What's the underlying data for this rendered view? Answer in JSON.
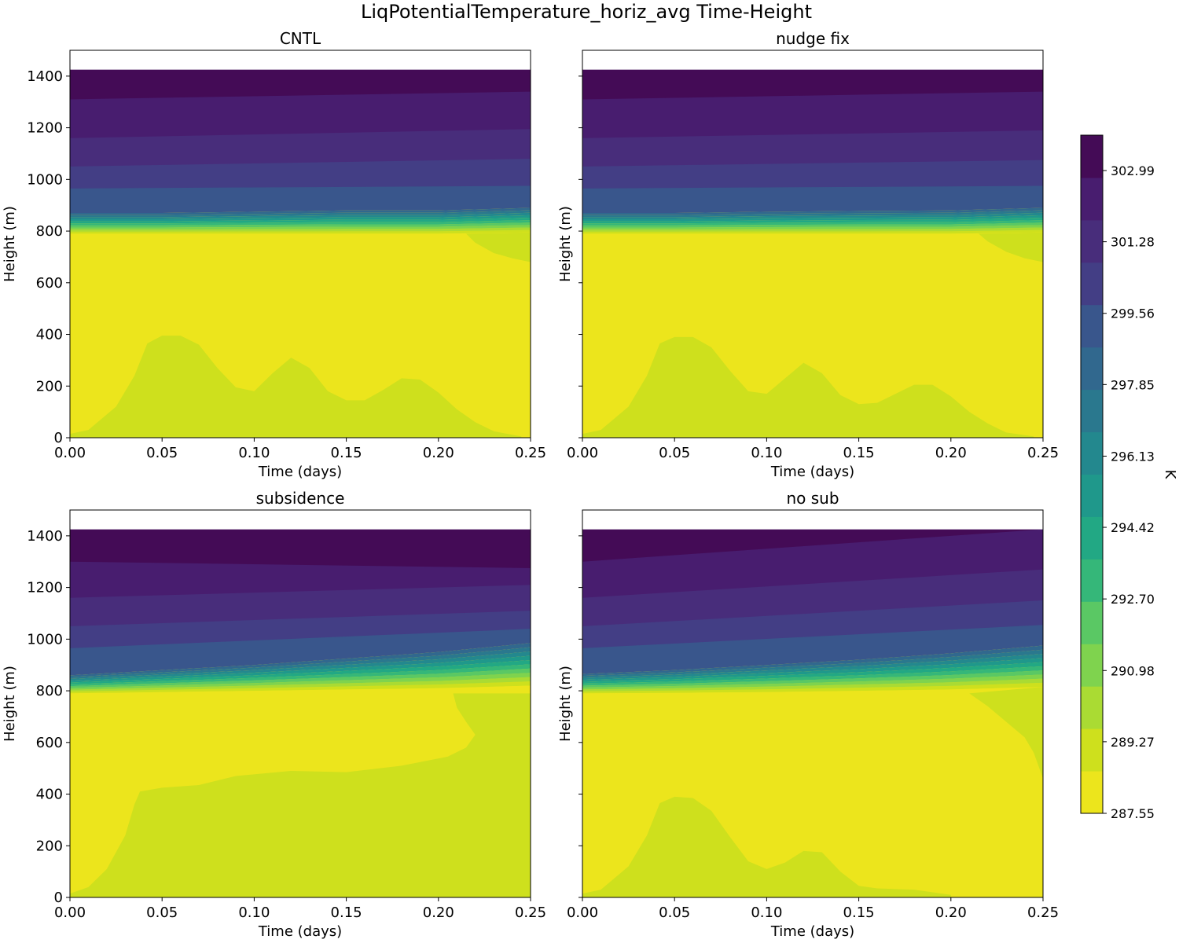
{
  "figure": {
    "suptitle": "LiqPotentialTemperature_horiz_avg Time-Height"
  },
  "chart_data": [
    {
      "type": "contourf",
      "title": "CNTL",
      "xlabel": "Time (days)",
      "ylabel": "Height (m)",
      "xlim": [
        0,
        0.25
      ],
      "ylim": [
        0,
        1500
      ],
      "xticks": [
        "0.00",
        "0.05",
        "0.10",
        "0.15",
        "0.20",
        "0.25"
      ],
      "yticks": [
        "0",
        "200",
        "400",
        "600",
        "800",
        "1000",
        "1200",
        "1400"
      ],
      "show_ytick_labels": true,
      "data_top_height_m": 1425,
      "inversion": {
        "base_m": [
          790,
          790,
          790,
          790,
          790,
          795
        ],
        "top_m": [
          870,
          870,
          875,
          880,
          880,
          890
        ]
      },
      "upper_band_heights_m": [
        [
          965,
          975
        ],
        [
          1050,
          1080
        ],
        [
          1160,
          1195
        ],
        [
          1310,
          1340
        ]
      ],
      "mixed_layer_top_m": [
        {
          "t": 0.0,
          "z": 15
        },
        {
          "t": 0.01,
          "z": 30
        },
        {
          "t": 0.025,
          "z": 120
        },
        {
          "t": 0.035,
          "z": 240
        },
        {
          "t": 0.042,
          "z": 365
        },
        {
          "t": 0.05,
          "z": 395
        },
        {
          "t": 0.06,
          "z": 395
        },
        {
          "t": 0.07,
          "z": 360
        },
        {
          "t": 0.08,
          "z": 270
        },
        {
          "t": 0.09,
          "z": 195
        },
        {
          "t": 0.1,
          "z": 180
        },
        {
          "t": 0.11,
          "z": 250
        },
        {
          "t": 0.12,
          "z": 310
        },
        {
          "t": 0.13,
          "z": 270
        },
        {
          "t": 0.14,
          "z": 180
        },
        {
          "t": 0.15,
          "z": 145
        },
        {
          "t": 0.16,
          "z": 145
        },
        {
          "t": 0.17,
          "z": 185
        },
        {
          "t": 0.18,
          "z": 230
        },
        {
          "t": 0.19,
          "z": 225
        },
        {
          "t": 0.2,
          "z": 175
        },
        {
          "t": 0.21,
          "z": 110
        },
        {
          "t": 0.22,
          "z": 60
        },
        {
          "t": 0.23,
          "z": 25
        },
        {
          "t": 0.245,
          "z": 5
        }
      ],
      "upper_cool_region_m": [
        {
          "t": 0.215,
          "z": 790
        },
        {
          "t": 0.22,
          "z": 755
        },
        {
          "t": 0.23,
          "z": 715
        },
        {
          "t": 0.24,
          "z": 695
        },
        {
          "t": 0.25,
          "z": 680
        }
      ]
    },
    {
      "type": "contourf",
      "title": "nudge fix",
      "xlabel": "Time (days)",
      "ylabel": "Height (m)",
      "xlim": [
        0,
        0.25
      ],
      "ylim": [
        0,
        1500
      ],
      "xticks": [
        "0.00",
        "0.05",
        "0.10",
        "0.15",
        "0.20",
        "0.25"
      ],
      "yticks": [
        "0",
        "200",
        "400",
        "600",
        "800",
        "1000",
        "1200",
        "1400"
      ],
      "show_ytick_labels": false,
      "data_top_height_m": 1425,
      "inversion": {
        "base_m": [
          790,
          790,
          790,
          790,
          790,
          795
        ],
        "top_m": [
          870,
          870,
          875,
          878,
          880,
          890
        ]
      },
      "upper_band_heights_m": [
        [
          965,
          975
        ],
        [
          1050,
          1075
        ],
        [
          1160,
          1190
        ],
        [
          1310,
          1340
        ]
      ],
      "mixed_layer_top_m": [
        {
          "t": 0.0,
          "z": 15
        },
        {
          "t": 0.01,
          "z": 30
        },
        {
          "t": 0.025,
          "z": 120
        },
        {
          "t": 0.035,
          "z": 240
        },
        {
          "t": 0.042,
          "z": 365
        },
        {
          "t": 0.05,
          "z": 390
        },
        {
          "t": 0.06,
          "z": 390
        },
        {
          "t": 0.07,
          "z": 350
        },
        {
          "t": 0.08,
          "z": 260
        },
        {
          "t": 0.09,
          "z": 180
        },
        {
          "t": 0.1,
          "z": 170
        },
        {
          "t": 0.11,
          "z": 230
        },
        {
          "t": 0.12,
          "z": 290
        },
        {
          "t": 0.13,
          "z": 250
        },
        {
          "t": 0.14,
          "z": 165
        },
        {
          "t": 0.15,
          "z": 130
        },
        {
          "t": 0.16,
          "z": 135
        },
        {
          "t": 0.17,
          "z": 170
        },
        {
          "t": 0.18,
          "z": 205
        },
        {
          "t": 0.19,
          "z": 205
        },
        {
          "t": 0.2,
          "z": 160
        },
        {
          "t": 0.21,
          "z": 100
        },
        {
          "t": 0.22,
          "z": 55
        },
        {
          "t": 0.23,
          "z": 20
        },
        {
          "t": 0.245,
          "z": 5
        }
      ],
      "upper_cool_region_m": [
        {
          "t": 0.215,
          "z": 790
        },
        {
          "t": 0.22,
          "z": 760
        },
        {
          "t": 0.23,
          "z": 720
        },
        {
          "t": 0.24,
          "z": 695
        },
        {
          "t": 0.25,
          "z": 680
        }
      ]
    },
    {
      "type": "contourf",
      "title": "subsidence",
      "xlabel": "Time (days)",
      "ylabel": "Height (m)",
      "xlim": [
        0,
        0.25
      ],
      "ylim": [
        0,
        1500
      ],
      "xticks": [
        "0.00",
        "0.05",
        "0.10",
        "0.15",
        "0.20",
        "0.25"
      ],
      "yticks": [
        "0",
        "200",
        "400",
        "600",
        "800",
        "1000",
        "1200",
        "1400"
      ],
      "show_ytick_labels": true,
      "data_top_height_m": 1425,
      "inversion": {
        "base_m": [
          790,
          795,
          800,
          805,
          810,
          820
        ],
        "top_m": [
          860,
          880,
          900,
          925,
          950,
          985
        ]
      },
      "upper_band_heights_m": [
        [
          965,
          1040
        ],
        [
          1050,
          1110
        ],
        [
          1160,
          1210
        ],
        [
          1300,
          1275
        ]
      ],
      "mixed_layer_top_m": [
        {
          "t": 0.0,
          "z": 15
        },
        {
          "t": 0.01,
          "z": 40
        },
        {
          "t": 0.02,
          "z": 110
        },
        {
          "t": 0.03,
          "z": 240
        },
        {
          "t": 0.035,
          "z": 360
        },
        {
          "t": 0.038,
          "z": 410
        },
        {
          "t": 0.05,
          "z": 425
        },
        {
          "t": 0.07,
          "z": 435
        },
        {
          "t": 0.09,
          "z": 470
        },
        {
          "t": 0.12,
          "z": 490
        },
        {
          "t": 0.15,
          "z": 485
        },
        {
          "t": 0.18,
          "z": 510
        },
        {
          "t": 0.205,
          "z": 545
        },
        {
          "t": 0.215,
          "z": 580
        },
        {
          "t": 0.22,
          "z": 630
        },
        {
          "t": 0.215,
          "z": 680
        },
        {
          "t": 0.21,
          "z": 735
        },
        {
          "t": 0.208,
          "z": 790
        }
      ],
      "upper_cool_region_m": []
    },
    {
      "type": "contourf",
      "title": "no sub",
      "xlabel": "Time (days)",
      "ylabel": "Height (m)",
      "xlim": [
        0,
        0.25
      ],
      "ylim": [
        0,
        1500
      ],
      "xticks": [
        "0.00",
        "0.05",
        "0.10",
        "0.15",
        "0.20",
        "0.25"
      ],
      "yticks": [
        "0",
        "200",
        "400",
        "600",
        "800",
        "1000",
        "1200",
        "1400"
      ],
      "show_ytick_labels": false,
      "data_top_height_m": 1425,
      "inversion": {
        "base_m": [
          790,
          792,
          795,
          800,
          805,
          815
        ],
        "top_m": [
          865,
          880,
          900,
          920,
          945,
          975
        ]
      },
      "upper_band_heights_m": [
        [
          965,
          1055
        ],
        [
          1050,
          1150
        ],
        [
          1160,
          1270
        ],
        [
          1300,
          1425
        ]
      ],
      "mixed_layer_top_m": [
        {
          "t": 0.0,
          "z": 15
        },
        {
          "t": 0.01,
          "z": 30
        },
        {
          "t": 0.025,
          "z": 120
        },
        {
          "t": 0.035,
          "z": 240
        },
        {
          "t": 0.042,
          "z": 365
        },
        {
          "t": 0.05,
          "z": 390
        },
        {
          "t": 0.06,
          "z": 385
        },
        {
          "t": 0.07,
          "z": 335
        },
        {
          "t": 0.08,
          "z": 235
        },
        {
          "t": 0.09,
          "z": 140
        },
        {
          "t": 0.1,
          "z": 110
        },
        {
          "t": 0.11,
          "z": 135
        },
        {
          "t": 0.12,
          "z": 180
        },
        {
          "t": 0.13,
          "z": 175
        },
        {
          "t": 0.14,
          "z": 100
        },
        {
          "t": 0.15,
          "z": 45
        },
        {
          "t": 0.16,
          "z": 35
        },
        {
          "t": 0.18,
          "z": 30
        },
        {
          "t": 0.2,
          "z": 10
        }
      ],
      "upper_cool_region_m": [
        {
          "t": 0.21,
          "z": 790
        },
        {
          "t": 0.22,
          "z": 740
        },
        {
          "t": 0.23,
          "z": 680
        },
        {
          "t": 0.24,
          "z": 620
        },
        {
          "t": 0.245,
          "z": 560
        },
        {
          "t": 0.25,
          "z": 460
        }
      ]
    }
  ],
  "colorbar": {
    "label": "K",
    "min": 287.55,
    "max": 303.84,
    "tick_labels": [
      "287.55",
      "289.27",
      "290.98",
      "292.70",
      "294.42",
      "296.13",
      "297.85",
      "299.56",
      "301.28",
      "302.99"
    ],
    "colors": [
      "#ece51c",
      "#cee01d",
      "#aadb33",
      "#7fd34e",
      "#5ac864",
      "#35b779",
      "#22a884",
      "#1f988b",
      "#23888e",
      "#2a788e",
      "#31688e",
      "#39568c",
      "#433e85",
      "#482d7b",
      "#481d6f",
      "#440b56"
    ]
  }
}
